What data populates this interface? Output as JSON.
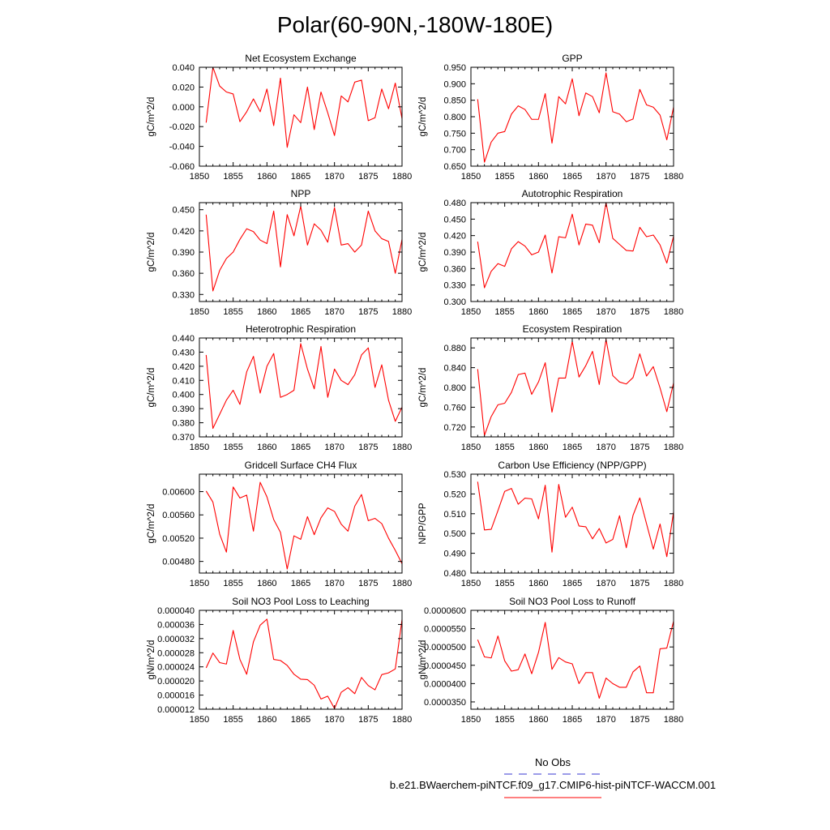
{
  "figure": {
    "title": "Polar(60-90N,-180W-180E)"
  },
  "legend": {
    "entries": [
      {
        "label": "No Obs",
        "color": "#3a3ad0",
        "style": "dashed"
      },
      {
        "label": "b.e21.BWaerchem-piNTCF.f09_g17.CMIP6-hist-piNTCF-WACCM.001",
        "color": "#ff0000",
        "style": "solid"
      }
    ]
  },
  "line_color": "#ff0000",
  "chart_data": [
    {
      "type": "line",
      "title": "Net Ecosystem Exchange",
      "ylabel": "gC/m^2/d",
      "xlim": [
        1850,
        1880
      ],
      "ylim": [
        -0.06,
        0.04
      ],
      "xticks": [
        1850,
        1855,
        1860,
        1865,
        1870,
        1875,
        1880
      ],
      "yticks": [
        -0.06,
        -0.04,
        -0.02,
        0.0,
        0.02,
        0.04
      ],
      "ytick_labels": [
        "-0.060",
        "-0.040",
        "-0.020",
        "0.000",
        "0.020",
        "0.040"
      ],
      "x": [
        1851,
        1852,
        1853,
        1854,
        1855,
        1856,
        1857,
        1858,
        1859,
        1860,
        1861,
        1862,
        1863,
        1864,
        1865,
        1866,
        1867,
        1868,
        1869,
        1870,
        1871,
        1872,
        1873,
        1874,
        1875,
        1876,
        1877,
        1878,
        1879,
        1880
      ],
      "y": [
        -0.016,
        0.04,
        0.021,
        0.015,
        0.013,
        -0.015,
        -0.005,
        0.008,
        -0.005,
        0.018,
        -0.019,
        0.029,
        -0.041,
        -0.008,
        -0.016,
        0.02,
        -0.023,
        0.015,
        -0.006,
        -0.029,
        0.011,
        0.005,
        0.025,
        0.027,
        -0.014,
        -0.011,
        0.018,
        -0.002,
        0.024,
        -0.012
      ]
    },
    {
      "type": "line",
      "title": "GPP",
      "ylabel": "gC/m^2/d",
      "xlim": [
        1850,
        1880
      ],
      "ylim": [
        0.65,
        0.95
      ],
      "xticks": [
        1850,
        1855,
        1860,
        1865,
        1870,
        1875,
        1880
      ],
      "yticks": [
        0.65,
        0.7,
        0.75,
        0.8,
        0.85,
        0.9,
        0.95
      ],
      "ytick_labels": [
        "0.650",
        "0.700",
        "0.750",
        "0.800",
        "0.850",
        "0.900",
        "0.950"
      ],
      "x": [
        1851,
        1852,
        1853,
        1854,
        1855,
        1856,
        1857,
        1858,
        1859,
        1860,
        1861,
        1862,
        1863,
        1864,
        1865,
        1866,
        1867,
        1868,
        1869,
        1870,
        1871,
        1872,
        1873,
        1874,
        1875,
        1876,
        1877,
        1878,
        1879,
        1880
      ],
      "y": [
        0.853,
        0.662,
        0.723,
        0.75,
        0.755,
        0.808,
        0.833,
        0.822,
        0.792,
        0.792,
        0.87,
        0.72,
        0.861,
        0.839,
        0.915,
        0.803,
        0.872,
        0.861,
        0.812,
        0.933,
        0.815,
        0.808,
        0.785,
        0.793,
        0.883,
        0.836,
        0.829,
        0.805,
        0.73,
        0.829
      ]
    },
    {
      "type": "line",
      "title": "NPP",
      "ylabel": "gC/m^2/d",
      "xlim": [
        1850,
        1880
      ],
      "ylim": [
        0.32,
        0.46
      ],
      "xticks": [
        1850,
        1855,
        1860,
        1865,
        1870,
        1875,
        1880
      ],
      "yticks": [
        0.33,
        0.36,
        0.39,
        0.42,
        0.45
      ],
      "ytick_labels": [
        "0.330",
        "0.360",
        "0.390",
        "0.420",
        "0.450"
      ],
      "x": [
        1851,
        1852,
        1853,
        1854,
        1855,
        1856,
        1857,
        1858,
        1859,
        1860,
        1861,
        1862,
        1863,
        1864,
        1865,
        1866,
        1867,
        1868,
        1869,
        1870,
        1871,
        1872,
        1873,
        1874,
        1875,
        1876,
        1877,
        1878,
        1879,
        1880
      ],
      "y": [
        0.443,
        0.335,
        0.364,
        0.381,
        0.39,
        0.408,
        0.423,
        0.419,
        0.407,
        0.402,
        0.448,
        0.369,
        0.443,
        0.413,
        0.455,
        0.4,
        0.43,
        0.421,
        0.404,
        0.453,
        0.4,
        0.402,
        0.39,
        0.4,
        0.448,
        0.42,
        0.409,
        0.405,
        0.36,
        0.408
      ]
    },
    {
      "type": "line",
      "title": "Autotrophic Respiration",
      "ylabel": "gC/m^2/d",
      "xlim": [
        1850,
        1880
      ],
      "ylim": [
        0.3,
        0.48
      ],
      "xticks": [
        1850,
        1855,
        1860,
        1865,
        1870,
        1875,
        1880
      ],
      "yticks": [
        0.3,
        0.33,
        0.36,
        0.39,
        0.42,
        0.45,
        0.48
      ],
      "ytick_labels": [
        "0.300",
        "0.330",
        "0.360",
        "0.390",
        "0.420",
        "0.450",
        "0.480"
      ],
      "x": [
        1851,
        1852,
        1853,
        1854,
        1855,
        1856,
        1857,
        1858,
        1859,
        1860,
        1861,
        1862,
        1863,
        1864,
        1865,
        1866,
        1867,
        1868,
        1869,
        1870,
        1871,
        1872,
        1873,
        1874,
        1875,
        1876,
        1877,
        1878,
        1879,
        1880
      ],
      "y": [
        0.409,
        0.325,
        0.355,
        0.369,
        0.364,
        0.396,
        0.409,
        0.401,
        0.385,
        0.39,
        0.421,
        0.352,
        0.418,
        0.416,
        0.459,
        0.403,
        0.441,
        0.439,
        0.407,
        0.48,
        0.415,
        0.404,
        0.393,
        0.392,
        0.435,
        0.418,
        0.421,
        0.403,
        0.37,
        0.419
      ]
    },
    {
      "type": "line",
      "title": "Heterotrophic Respiration",
      "ylabel": "gC/m^2/d",
      "xlim": [
        1850,
        1880
      ],
      "ylim": [
        0.37,
        0.44
      ],
      "xticks": [
        1850,
        1855,
        1860,
        1865,
        1870,
        1875,
        1880
      ],
      "yticks": [
        0.37,
        0.38,
        0.39,
        0.4,
        0.41,
        0.42,
        0.43,
        0.44
      ],
      "ytick_labels": [
        "0.370",
        "0.380",
        "0.390",
        "0.400",
        "0.410",
        "0.420",
        "0.430",
        "0.440"
      ],
      "x": [
        1851,
        1852,
        1853,
        1854,
        1855,
        1856,
        1857,
        1858,
        1859,
        1860,
        1861,
        1862,
        1863,
        1864,
        1865,
        1866,
        1867,
        1868,
        1869,
        1870,
        1871,
        1872,
        1873,
        1874,
        1875,
        1876,
        1877,
        1878,
        1879,
        1880
      ],
      "y": [
        0.428,
        0.376,
        0.386,
        0.396,
        0.403,
        0.393,
        0.416,
        0.427,
        0.401,
        0.42,
        0.429,
        0.398,
        0.4,
        0.403,
        0.436,
        0.418,
        0.404,
        0.434,
        0.398,
        0.418,
        0.41,
        0.407,
        0.414,
        0.428,
        0.433,
        0.405,
        0.421,
        0.396,
        0.381,
        0.391
      ]
    },
    {
      "type": "line",
      "title": "Ecosystem Respiration",
      "ylabel": "gC/m^2/d",
      "xlim": [
        1850,
        1880
      ],
      "ylim": [
        0.7,
        0.9
      ],
      "xticks": [
        1850,
        1855,
        1860,
        1865,
        1870,
        1875,
        1880
      ],
      "yticks": [
        0.72,
        0.76,
        0.8,
        0.84,
        0.88
      ],
      "ytick_labels": [
        "0.720",
        "0.760",
        "0.800",
        "0.840",
        "0.880"
      ],
      "x": [
        1851,
        1852,
        1853,
        1854,
        1855,
        1856,
        1857,
        1858,
        1859,
        1860,
        1861,
        1862,
        1863,
        1864,
        1865,
        1866,
        1867,
        1868,
        1869,
        1870,
        1871,
        1872,
        1873,
        1874,
        1875,
        1876,
        1877,
        1878,
        1879,
        1880
      ],
      "y": [
        0.837,
        0.703,
        0.741,
        0.765,
        0.768,
        0.79,
        0.826,
        0.829,
        0.786,
        0.811,
        0.85,
        0.75,
        0.819,
        0.819,
        0.893,
        0.821,
        0.844,
        0.873,
        0.806,
        0.897,
        0.824,
        0.811,
        0.807,
        0.82,
        0.868,
        0.823,
        0.842,
        0.799,
        0.751,
        0.809
      ]
    },
    {
      "type": "line",
      "title": "Gridcell Surface CH4 Flux",
      "ylabel": "gC/m^2/d",
      "xlim": [
        1850,
        1880
      ],
      "ylim": [
        0.0046,
        0.0063
      ],
      "xticks": [
        1850,
        1855,
        1860,
        1865,
        1870,
        1875,
        1880
      ],
      "yticks": [
        0.0048,
        0.0052,
        0.0056,
        0.006
      ],
      "ytick_labels": [
        "0.00480",
        "0.00520",
        "0.00560",
        "0.00600"
      ],
      "x": [
        1851,
        1852,
        1853,
        1854,
        1855,
        1856,
        1857,
        1858,
        1859,
        1860,
        1861,
        1862,
        1863,
        1864,
        1865,
        1866,
        1867,
        1868,
        1869,
        1870,
        1871,
        1872,
        1873,
        1874,
        1875,
        1876,
        1877,
        1878,
        1879,
        1880
      ],
      "y": [
        0.00601,
        0.00582,
        0.00527,
        0.00496,
        0.00608,
        0.00589,
        0.00594,
        0.00532,
        0.00616,
        0.00591,
        0.00552,
        0.0053,
        0.00467,
        0.00524,
        0.00518,
        0.00557,
        0.00526,
        0.00555,
        0.00572,
        0.00566,
        0.00544,
        0.00532,
        0.00575,
        0.00595,
        0.0055,
        0.00554,
        0.00545,
        0.0052,
        0.00499,
        0.00476
      ]
    },
    {
      "type": "line",
      "title": "Carbon Use Efficiency (NPP/GPP)",
      "ylabel": "NPP/GPP",
      "xlim": [
        1850,
        1880
      ],
      "ylim": [
        0.48,
        0.53
      ],
      "xticks": [
        1850,
        1855,
        1860,
        1865,
        1870,
        1875,
        1880
      ],
      "yticks": [
        0.48,
        0.49,
        0.5,
        0.51,
        0.52,
        0.53
      ],
      "ytick_labels": [
        "0.480",
        "0.490",
        "0.500",
        "0.510",
        "0.520",
        "0.530"
      ],
      "x": [
        1851,
        1852,
        1853,
        1854,
        1855,
        1856,
        1857,
        1858,
        1859,
        1860,
        1861,
        1862,
        1863,
        1864,
        1865,
        1866,
        1867,
        1868,
        1869,
        1870,
        1871,
        1872,
        1873,
        1874,
        1875,
        1876,
        1877,
        1878,
        1879,
        1880
      ],
      "y": [
        0.5262,
        0.5018,
        0.5021,
        0.5116,
        0.5213,
        0.5228,
        0.5148,
        0.5179,
        0.5175,
        0.5074,
        0.5244,
        0.4906,
        0.5248,
        0.5082,
        0.5133,
        0.5038,
        0.5034,
        0.4973,
        0.5025,
        0.4952,
        0.497,
        0.509,
        0.4928,
        0.5092,
        0.518,
        0.5049,
        0.4921,
        0.5048,
        0.4883,
        0.5109
      ]
    },
    {
      "type": "line",
      "title": "Soil NO3 Pool Loss to Leaching",
      "ylabel": "gN/m^2/d",
      "xlim": [
        1850,
        1880
      ],
      "ylim": [
        1.2e-05,
        4e-05
      ],
      "xticks": [
        1850,
        1855,
        1860,
        1865,
        1870,
        1875,
        1880
      ],
      "yticks": [
        1.2e-05,
        1.6e-05,
        2e-05,
        2.4e-05,
        2.8e-05,
        3.2e-05,
        3.6e-05,
        4e-05
      ],
      "ytick_labels": [
        "0.000012",
        "0.000016",
        "0.000020",
        "0.000024",
        "0.000028",
        "0.000032",
        "0.000036",
        "0.000040"
      ],
      "x": [
        1851,
        1852,
        1853,
        1854,
        1855,
        1856,
        1857,
        1858,
        1859,
        1860,
        1861,
        1862,
        1863,
        1864,
        1865,
        1866,
        1867,
        1868,
        1869,
        1870,
        1871,
        1872,
        1873,
        1874,
        1875,
        1876,
        1877,
        1878,
        1879,
        1880
      ],
      "y": [
        2.37e-05,
        2.79e-05,
        2.52e-05,
        2.48e-05,
        3.43e-05,
        2.61e-05,
        2.19e-05,
        3.11e-05,
        3.58e-05,
        3.75e-05,
        2.61e-05,
        2.58e-05,
        2.44e-05,
        2.19e-05,
        2.05e-05,
        2.04e-05,
        1.88e-05,
        1.49e-05,
        1.57e-05,
        1.22e-05,
        1.68e-05,
        1.81e-05,
        1.64e-05,
        2.1e-05,
        1.87e-05,
        1.75e-05,
        2.18e-05,
        2.23e-05,
        2.34e-05,
        3.74e-05
      ]
    },
    {
      "type": "line",
      "title": "Soil NO3 Pool Loss to Runoff",
      "ylabel": "gN/m^2/d",
      "xlim": [
        1850,
        1880
      ],
      "ylim": [
        3.3e-05,
        6e-05
      ],
      "xticks": [
        1850,
        1855,
        1860,
        1865,
        1870,
        1875,
        1880
      ],
      "yticks": [
        3.5e-05,
        4e-05,
        4.5e-05,
        5e-05,
        5.5e-05,
        6e-05
      ],
      "ytick_labels": [
        "0.0000350",
        "0.0000400",
        "0.0000450",
        "0.0000500",
        "0.0000550",
        "0.0000600"
      ],
      "x": [
        1851,
        1852,
        1853,
        1854,
        1855,
        1856,
        1857,
        1858,
        1859,
        1860,
        1861,
        1862,
        1863,
        1864,
        1865,
        1866,
        1867,
        1868,
        1869,
        1870,
        1871,
        1872,
        1873,
        1874,
        1875,
        1876,
        1877,
        1878,
        1879,
        1880
      ],
      "y": [
        5.2e-05,
        4.73e-05,
        4.7e-05,
        5.3e-05,
        4.62e-05,
        4.34e-05,
        4.38e-05,
        4.81e-05,
        4.27e-05,
        4.85e-05,
        5.67e-05,
        4.39e-05,
        4.71e-05,
        4.59e-05,
        4.54e-05,
        4e-05,
        4.3e-05,
        4.3e-05,
        3.6e-05,
        4.15e-05,
        4e-05,
        3.9e-05,
        3.9e-05,
        4.32e-05,
        4.48e-05,
        3.75e-05,
        3.75e-05,
        4.95e-05,
        4.97e-05,
        5.7e-05
      ]
    }
  ]
}
